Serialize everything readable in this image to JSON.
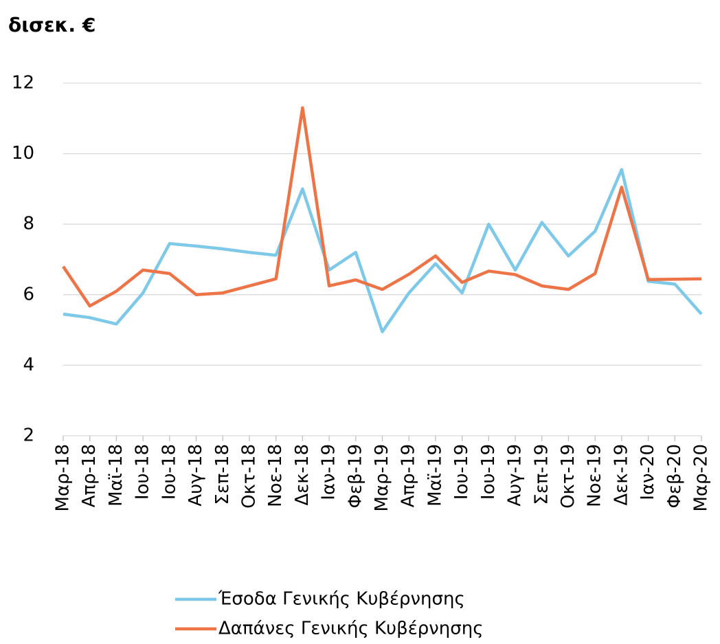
{
  "chart_data": {
    "type": "line",
    "title": "δισεκ. €",
    "categories": [
      "Μαρ-18",
      "Απρ-18",
      "Μαϊ-18",
      "Ιου-18",
      "Ιου-18",
      "Αυγ-18",
      "Σεπ-18",
      "Οκτ-18",
      "Νοε-18",
      "Δεκ-18",
      "Ιαν-19",
      "Φεβ-19",
      "Μαρ-19",
      "Απρ-19",
      "Μαϊ-19",
      "Ιου-19",
      "Ιου-19",
      "Αυγ-19",
      "Σεπ-19",
      "Οκτ-19",
      "Νοε-19",
      "Δεκ-19",
      "Ιαν-20",
      "Φεβ-20",
      "Μαρ-20"
    ],
    "series": [
      {
        "name": "Έσοδα Γενικής Κυβέρνησης",
        "color": "#7ec8e8",
        "values": [
          5.45,
          5.35,
          5.17,
          6.05,
          7.45,
          7.38,
          7.3,
          7.2,
          7.12,
          9.0,
          6.7,
          7.2,
          4.95,
          6.05,
          6.88,
          6.05,
          8.0,
          6.7,
          8.05,
          7.1,
          7.8,
          9.55,
          6.38,
          6.3,
          5.45
        ]
      },
      {
        "name": "Δαπάνες Γενικής Κυβέρνησης",
        "color": "#ed7446",
        "values": [
          6.8,
          5.68,
          6.1,
          6.7,
          6.6,
          6.0,
          6.05,
          6.25,
          6.45,
          11.3,
          6.25,
          6.42,
          6.15,
          6.58,
          7.1,
          6.35,
          6.67,
          6.57,
          6.25,
          6.15,
          6.6,
          9.05,
          6.43,
          6.44,
          6.45
        ]
      }
    ],
    "ylim": [
      2,
      12
    ],
    "yticks": [
      2,
      4,
      6,
      8,
      10,
      12
    ],
    "grid": true
  }
}
